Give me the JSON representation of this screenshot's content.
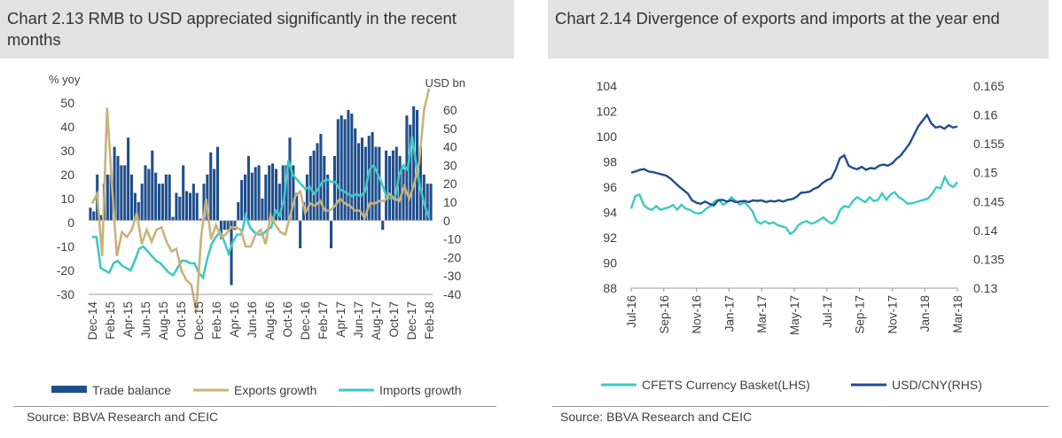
{
  "chart_data": [
    {
      "type": "bar",
      "title": "Chart 2.13 RMB  to USD appreciated significantly in the recent months",
      "ylabel": "% yoy",
      "y2label": "USD bn",
      "ylim": [
        -30,
        50
      ],
      "y2lim": [
        -40,
        60
      ],
      "yticks": [
        "50",
        "40",
        "30",
        "20",
        "10",
        "0",
        "-10",
        "-20",
        "-30"
      ],
      "y2ticks": [
        "60",
        "50",
        "40",
        "30",
        "20",
        "10",
        "0",
        "-10",
        "-20",
        "-30",
        "-40"
      ],
      "xticks": [
        "Dec-14",
        "Feb-15",
        "Apr-15",
        "Jun-15",
        "Aug-15",
        "Oct-15",
        "Dec-15",
        "Feb-16",
        "Apr-16",
        "Jun-16",
        "Aug-16",
        "Oct-16",
        "Dec-16",
        "Feb-17",
        "Apr-17",
        "Jun-17",
        "Aug-17",
        "Oct-17",
        "Dec-17",
        "Feb-18"
      ],
      "months": 39,
      "series": [
        {
          "name": "Trade balance",
          "kind": "bar",
          "axis": "right",
          "color": "#1f4e8c",
          "values": [
            7,
            5,
            25,
            3,
            20,
            25,
            25,
            40,
            35,
            30,
            30,
            45,
            25,
            15,
            10,
            20,
            30,
            28,
            38,
            26,
            20,
            20,
            25,
            25,
            2,
            15,
            13,
            30,
            16,
            15,
            20,
            15,
            1,
            20,
            25,
            37,
            28,
            40,
            -10,
            -5,
            -5,
            -35,
            -5,
            10,
            22,
            25,
            35,
            26,
            29,
            30,
            12,
            25,
            30,
            31,
            28,
            20,
            30,
            30,
            45,
            30,
            15,
            -15,
            10,
            25,
            35,
            38,
            42,
            47,
            35,
            25,
            -15,
            35,
            55,
            57,
            55,
            60,
            58,
            50,
            42,
            45,
            40,
            46,
            48,
            40,
            40,
            -5,
            38,
            35,
            38,
            40,
            35,
            28,
            57,
            52,
            62,
            60,
            40,
            25,
            20,
            20
          ]
        },
        {
          "name": "Exports growth",
          "kind": "line",
          "axis": "left",
          "color": "#c9b27c"
        },
        {
          "name": "Imports growth",
          "kind": "line",
          "axis": "left",
          "color": "#3ec9c5"
        }
      ],
      "exports_values": [
        8,
        12,
        -14,
        48,
        15,
        -14,
        -4,
        -6,
        -3,
        4,
        -9,
        -3,
        -8,
        -3,
        -2,
        -8,
        -12,
        -11,
        -20,
        -24,
        -26,
        -37,
        -6,
        10,
        -7,
        -1,
        -6,
        -5,
        -2,
        -2,
        -3,
        -10,
        -10,
        -5,
        -3,
        -9,
        3,
        -1,
        -4,
        -5,
        3,
        11,
        13,
        4,
        8,
        7,
        9,
        5,
        5,
        7,
        10,
        8,
        7,
        5,
        5,
        2,
        8,
        8,
        9,
        9,
        12,
        10,
        9,
        15,
        10,
        16,
        25,
        47,
        56
      ],
      "imports_values": [
        -6,
        -6,
        -19,
        -20,
        -21,
        -17,
        -16,
        -18,
        -19,
        -20,
        -16,
        -11,
        -10,
        -12,
        -14,
        -16,
        -17,
        -19,
        -21,
        -22,
        -19,
        -16,
        -16,
        -17,
        -17,
        -21,
        -23,
        -15,
        -9,
        -6,
        -4,
        -8,
        -13,
        -8,
        -5,
        -5,
        3,
        -2,
        -4,
        -5,
        -5,
        -3,
        -2,
        5,
        3,
        10,
        26,
        20,
        18,
        16,
        14,
        15,
        12,
        14,
        17,
        18,
        17,
        17,
        14,
        13,
        12,
        11,
        12,
        11,
        13,
        22,
        24,
        20,
        16,
        11,
        10,
        10,
        20,
        24,
        22,
        36,
        24,
        14,
        7,
        2
      ]
    },
    {
      "type": "line",
      "title": "Chart 2.14 Divergence of exports and imports at the year end",
      "ylim": [
        88,
        104
      ],
      "y2lim": [
        0.13,
        0.165
      ],
      "yticks": [
        "104",
        "102",
        "100",
        "98",
        "96",
        "94",
        "92",
        "90",
        "88"
      ],
      "y2ticks": [
        "0.165",
        "0.16",
        "0.155",
        "0.15",
        "0.145",
        "0.14",
        "0.135",
        "0.13"
      ],
      "xticks": [
        "Jul-16",
        "Sep-16",
        "Nov-16",
        "Jan-17",
        "Mar-17",
        "May-17",
        "Jul-17",
        "Sep-17",
        "Nov-17",
        "Jan-18",
        "Mar-18"
      ],
      "series": [
        {
          "name": "CFETS Currency Basket(LHS)",
          "axis": "left",
          "color": "#3ec9c5",
          "values": [
            94.3,
            95.3,
            95.4,
            94.6,
            94.3,
            94.2,
            94.5,
            94.2,
            94.3,
            94.4,
            94.6,
            94.2,
            94.6,
            94.3,
            94.2,
            94.0,
            93.9,
            94.0,
            94.3,
            94.5,
            94.9,
            95.0,
            94.6,
            94.8,
            95.2,
            94.9,
            94.6,
            94.8,
            94.5,
            94.1,
            93.3,
            93.1,
            93.3,
            93.1,
            93.2,
            93.0,
            92.9,
            92.8,
            92.3,
            92.5,
            93.0,
            93.2,
            93.3,
            93.1,
            93.2,
            93.4,
            93.6,
            93.3,
            93.1,
            93.4,
            94.2,
            94.5,
            94.4,
            94.9,
            95.2,
            95.0,
            94.8,
            95.2,
            94.9,
            95.0,
            95.5,
            95.0,
            95.4,
            95.6,
            95.2,
            95.0,
            94.7,
            94.7,
            94.8,
            94.9,
            95.0,
            95.1,
            95.5,
            96.0,
            95.9,
            96.8,
            96.2,
            96.0,
            96.4
          ]
        },
        {
          "name": "USD/CNY(RHS)",
          "axis": "right",
          "color": "#1f4e8c",
          "values": [
            0.15,
            0.1502,
            0.1505,
            0.1506,
            0.1502,
            0.1501,
            0.1499,
            0.1497,
            0.1495,
            0.149,
            0.1483,
            0.1476,
            0.147,
            0.1464,
            0.1452,
            0.1448,
            0.1446,
            0.145,
            0.1446,
            0.1443,
            0.1452,
            0.1453,
            0.145,
            0.1452,
            0.1449,
            0.145,
            0.1451,
            0.1449,
            0.1452,
            0.1451,
            0.1452,
            0.1449,
            0.1451,
            0.145,
            0.1452,
            0.145,
            0.1453,
            0.1454,
            0.1458,
            0.1465,
            0.1466,
            0.1467,
            0.1472,
            0.1475,
            0.1482,
            0.1487,
            0.149,
            0.1505,
            0.1525,
            0.153,
            0.1512,
            0.1508,
            0.1506,
            0.151,
            0.1505,
            0.1508,
            0.1507,
            0.1512,
            0.1514,
            0.1512,
            0.1516,
            0.1524,
            0.153,
            0.154,
            0.155,
            0.1565,
            0.158,
            0.159,
            0.16,
            0.1585,
            0.1578,
            0.158,
            0.1576,
            0.1582,
            0.1578,
            0.158
          ]
        }
      ]
    }
  ],
  "legend1": [
    "Trade balance",
    "Exports growth",
    "Imports growth"
  ],
  "legend2": [
    "CFETS Currency Basket(LHS)",
    "USD/CNY(RHS)"
  ],
  "source1": "Source: BBVA Research and CEIC",
  "source2": "Source: BBVA Research and CEIC",
  "colors": {
    "navy": "#1f4e8c",
    "tan": "#c9b27c",
    "teal": "#3ec9c5",
    "title_bg": "#e3e3e3"
  }
}
